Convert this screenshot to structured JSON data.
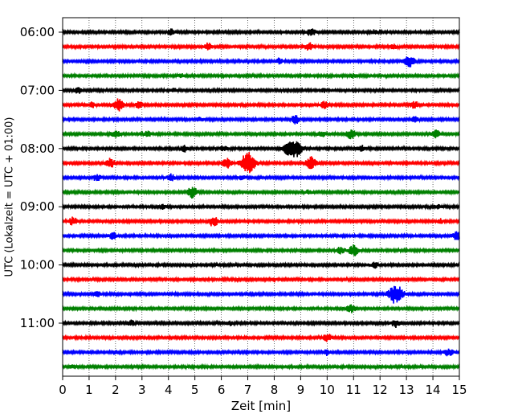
{
  "chart_data": {
    "type": "line",
    "xlabel": "Zeit  [min]",
    "ylabel": "UTC (Lokalzeit = UTC + 01:00)",
    "xlim": [
      0,
      15
    ],
    "x_ticks": [
      "0",
      "1",
      "2",
      "3",
      "4",
      "5",
      "6",
      "7",
      "8",
      "9",
      "10",
      "11",
      "12",
      "13",
      "14",
      "15"
    ],
    "y_tick_labels": [
      "06:00",
      "07:00",
      "08:00",
      "09:00",
      "10:00",
      "11:00"
    ],
    "y_tick_rows": [
      0,
      4,
      8,
      12,
      16,
      20
    ],
    "grid": "vertical dotted",
    "row_interval": "15 min",
    "line_colors": [
      "#000000",
      "#ff0000",
      "#0000ff",
      "#008000"
    ],
    "series": [
      {
        "row": 0,
        "start": "06:00",
        "color": "#000000",
        "events": [
          [
            4.1,
            0.5
          ],
          [
            9.4,
            0.6
          ],
          [
            11.8,
            0.3
          ]
        ]
      },
      {
        "row": 1,
        "start": "06:15",
        "color": "#ff0000",
        "events": [
          [
            5.5,
            0.5
          ],
          [
            9.3,
            0.6
          ],
          [
            12.5,
            0.3
          ]
        ]
      },
      {
        "row": 2,
        "start": "06:30",
        "color": "#0000ff",
        "events": [
          [
            8.2,
            0.4
          ],
          [
            13.1,
            0.9
          ]
        ]
      },
      {
        "row": 3,
        "start": "06:45",
        "color": "#008000",
        "events": [
          [
            4.5,
            0.3
          ],
          [
            11.0,
            0.3
          ]
        ]
      },
      {
        "row": 4,
        "start": "07:00",
        "color": "#000000",
        "events": [
          [
            0.6,
            0.5
          ],
          [
            4.2,
            0.3
          ],
          [
            9.9,
            0.3
          ]
        ]
      },
      {
        "row": 5,
        "start": "07:15",
        "color": "#ff0000",
        "events": [
          [
            1.1,
            0.4
          ],
          [
            2.1,
            0.9
          ],
          [
            2.9,
            0.5
          ],
          [
            9.9,
            0.5
          ],
          [
            13.3,
            0.5
          ]
        ]
      },
      {
        "row": 6,
        "start": "07:30",
        "color": "#0000ff",
        "events": [
          [
            5.2,
            0.3
          ],
          [
            8.8,
            0.6
          ],
          [
            13.3,
            0.4
          ]
        ]
      },
      {
        "row": 7,
        "start": "07:45",
        "color": "#008000",
        "events": [
          [
            2.0,
            0.6
          ],
          [
            3.2,
            0.4
          ],
          [
            9.8,
            0.4
          ],
          [
            10.9,
            0.7
          ],
          [
            14.1,
            0.6
          ]
        ]
      },
      {
        "row": 8,
        "start": "08:00",
        "color": "#000000",
        "events": [
          [
            4.6,
            0.5
          ],
          [
            6.1,
            0.4
          ],
          [
            8.6,
            1.2
          ],
          [
            8.9,
            0.9
          ],
          [
            11.3,
            0.4
          ]
        ]
      },
      {
        "row": 9,
        "start": "08:15",
        "color": "#ff0000",
        "events": [
          [
            1.8,
            0.7
          ],
          [
            6.2,
            0.8
          ],
          [
            7.0,
            1.6
          ],
          [
            9.4,
            0.9
          ]
        ]
      },
      {
        "row": 10,
        "start": "08:30",
        "color": "#0000ff",
        "events": [
          [
            1.3,
            0.5
          ],
          [
            4.1,
            0.5
          ],
          [
            6.8,
            0.4
          ]
        ]
      },
      {
        "row": 11,
        "start": "08:45",
        "color": "#008000",
        "events": [
          [
            4.9,
            0.8
          ],
          [
            9.3,
            0.3
          ]
        ]
      },
      {
        "row": 12,
        "start": "09:00",
        "color": "#000000",
        "events": [
          [
            3.8,
            0.3
          ],
          [
            14.2,
            0.3
          ]
        ]
      },
      {
        "row": 13,
        "start": "09:15",
        "color": "#ff0000",
        "events": [
          [
            0.4,
            0.6
          ],
          [
            5.7,
            0.8
          ],
          [
            14.3,
            0.3
          ]
        ]
      },
      {
        "row": 14,
        "start": "09:30",
        "color": "#0000ff",
        "events": [
          [
            1.9,
            0.5
          ],
          [
            14.9,
            0.6
          ]
        ]
      },
      {
        "row": 15,
        "start": "09:45",
        "color": "#008000",
        "events": [
          [
            10.5,
            0.5
          ],
          [
            11.0,
            0.8
          ]
        ]
      },
      {
        "row": 16,
        "start": "10:00",
        "color": "#000000",
        "events": [
          [
            11.8,
            0.4
          ]
        ]
      },
      {
        "row": 17,
        "start": "10:15",
        "color": "#ff0000",
        "events": [
          [
            8.0,
            0.3
          ]
        ]
      },
      {
        "row": 18,
        "start": "10:30",
        "color": "#0000ff",
        "events": [
          [
            1.3,
            0.4
          ],
          [
            12.6,
            1.5
          ]
        ]
      },
      {
        "row": 19,
        "start": "10:45",
        "color": "#008000",
        "events": [
          [
            10.9,
            0.6
          ]
        ]
      },
      {
        "row": 20,
        "start": "11:00",
        "color": "#000000",
        "events": [
          [
            2.6,
            0.4
          ],
          [
            6.3,
            0.3
          ],
          [
            12.6,
            0.6
          ]
        ]
      },
      {
        "row": 21,
        "start": "11:15",
        "color": "#ff0000",
        "events": [
          [
            10.0,
            0.6
          ]
        ]
      },
      {
        "row": 22,
        "start": "11:30",
        "color": "#0000ff",
        "events": [
          [
            2.0,
            0.3
          ],
          [
            10.0,
            0.4
          ],
          [
            14.6,
            0.6
          ]
        ]
      },
      {
        "row": 23,
        "start": "11:45",
        "color": "#008000",
        "events": [
          [
            0.4,
            0.3
          ]
        ]
      }
    ]
  }
}
